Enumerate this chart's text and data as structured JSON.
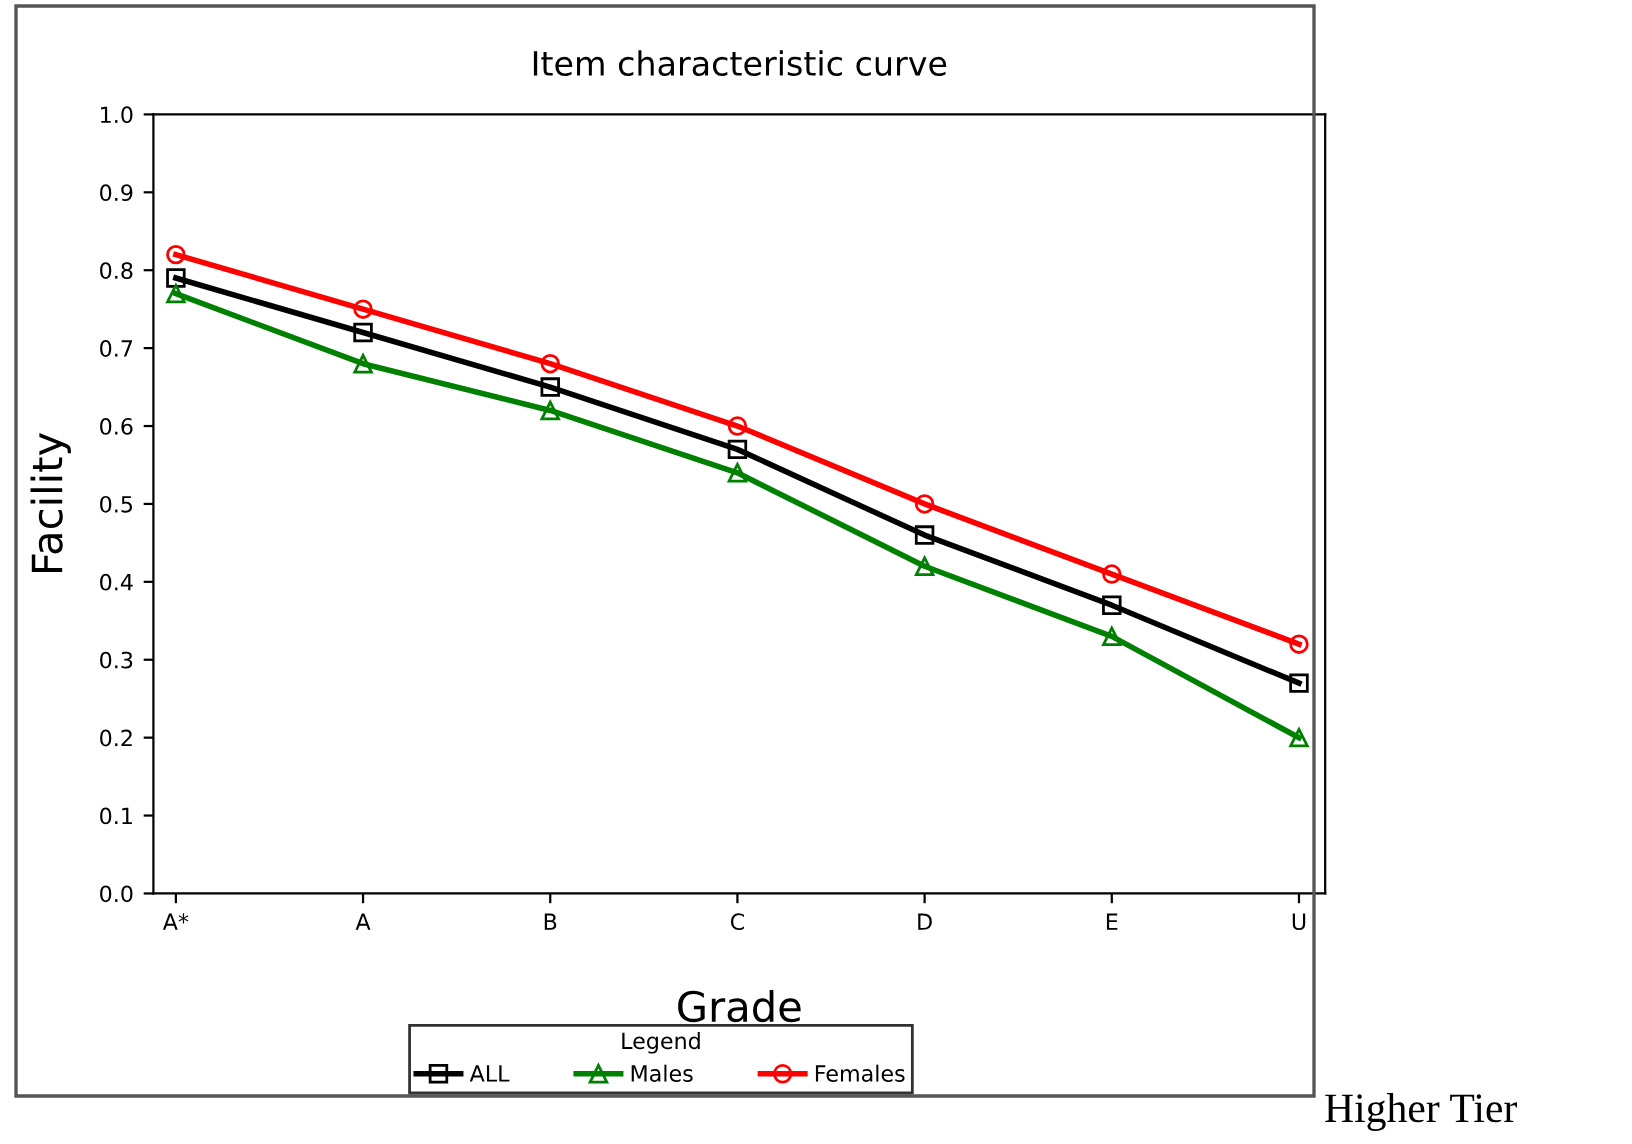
{
  "chart_data": {
    "type": "line",
    "title": "Item characteristic curve",
    "xlabel": "Grade",
    "ylabel": "Facility",
    "legend_title": "Legend",
    "categories": [
      "A*",
      "A",
      "B",
      "C",
      "D",
      "E",
      "U"
    ],
    "series": [
      {
        "name": "ALL",
        "color": "#000000",
        "marker": "square",
        "values": [
          0.79,
          0.72,
          0.65,
          0.57,
          0.46,
          0.37,
          0.27
        ]
      },
      {
        "name": "Males",
        "color": "#008000",
        "marker": "triangle",
        "values": [
          0.77,
          0.68,
          0.62,
          0.54,
          0.42,
          0.33,
          0.2
        ]
      },
      {
        "name": "Females",
        "color": "#ff0000",
        "marker": "circle",
        "values": [
          0.82,
          0.75,
          0.68,
          0.6,
          0.5,
          0.41,
          0.32
        ]
      }
    ],
    "ylim": [
      0.0,
      1.0
    ],
    "yticks": [
      {
        "value": 0.0,
        "label": "0.0"
      },
      0.1,
      0.2,
      0.3,
      0.4,
      0.5,
      0.6,
      0.7,
      0.8,
      0.9,
      {
        "value": 1.0,
        "label": "1.0"
      }
    ],
    "grid": false,
    "legend": "bottom",
    "line_style": "solid",
    "annotations": [
      "Higher Tier"
    ]
  }
}
